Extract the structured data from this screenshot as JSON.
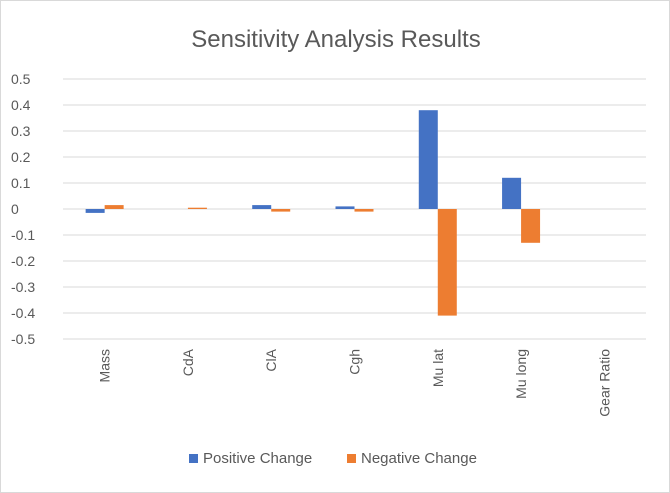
{
  "chart_data": {
    "type": "bar",
    "title": "Sensitivity Analysis Results",
    "categories": [
      "Mass",
      "CdA",
      "ClA",
      "Cgh",
      "Mu lat",
      "Mu long",
      "Gear Ratio"
    ],
    "series": [
      {
        "name": "Positive Change",
        "color": "#4472C4",
        "values": [
          -0.015,
          0.0,
          0.015,
          0.01,
          0.38,
          0.12,
          0.0
        ]
      },
      {
        "name": "Negative Change",
        "color": "#ED7D31",
        "values": [
          0.015,
          0.005,
          -0.01,
          -0.01,
          -0.41,
          -0.13,
          0.0
        ]
      }
    ],
    "ylim": [
      -0.5,
      0.5
    ],
    "yticks": [
      0.5,
      0.4,
      0.3,
      0.2,
      0.1,
      0,
      -0.1,
      -0.2,
      -0.3,
      -0.4,
      -0.5
    ],
    "ytick_labels": [
      "0.5",
      "0.4",
      "0.3",
      "0.2",
      "0.1",
      "0",
      "-0.1",
      "-0.2",
      "-0.3",
      "-0.4",
      "-0.5"
    ],
    "grid": true,
    "legend_position": "bottom"
  }
}
